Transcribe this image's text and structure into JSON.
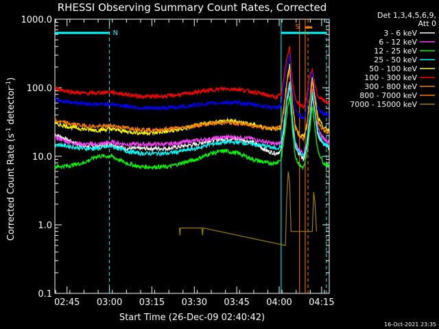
{
  "chart_data": {
    "type": "line",
    "title": "RHESSI Observing Summary Count Rates, Corrected",
    "xlabel": "Start Time (26-Dec-09 02:40:42)",
    "ylabel_main": "Corrected Count Rate (s",
    "ylabel_sup1": "-1",
    "ylabel_mid": " detector",
    "ylabel_sup2": "-1",
    "ylabel_end": ")",
    "y_scale": "log",
    "ylim": [
      0.1,
      1000
    ],
    "xlim_minutes": [
      0,
      97
    ],
    "y_ticks": [
      {
        "value": 1000,
        "label": "1000.0"
      },
      {
        "value": 100,
        "label": "100.0"
      },
      {
        "value": 10,
        "label": "10.0"
      },
      {
        "value": 1,
        "label": "1.0"
      },
      {
        "value": 0.1,
        "label": "0.1"
      }
    ],
    "x_ticks": [
      {
        "value": 4.3,
        "label": "02:45"
      },
      {
        "value": 19.3,
        "label": "03:00"
      },
      {
        "value": 34.3,
        "label": "03:15"
      },
      {
        "value": 49.3,
        "label": "03:30"
      },
      {
        "value": 64.3,
        "label": "03:45"
      },
      {
        "value": 79.3,
        "label": "04:00"
      },
      {
        "value": 94.3,
        "label": "04:15"
      }
    ],
    "legend": {
      "position": "top-right",
      "header1": "Det 1,3,4,5,6,9,",
      "header2": "Att 0"
    },
    "series": [
      {
        "name": "3 - 6 keV",
        "color": "#ffffff",
        "x": [
          0,
          5,
          10,
          15,
          20,
          25,
          30,
          35,
          40,
          45,
          50,
          55,
          60,
          65,
          70,
          75,
          78,
          80,
          81,
          82,
          83,
          84,
          85,
          86,
          87,
          88,
          89,
          90,
          91,
          92,
          93,
          95,
          97
        ],
        "y": [
          21,
          17,
          14,
          14,
          15,
          13,
          13,
          13,
          13,
          14,
          15,
          17,
          18,
          18,
          16,
          12,
          11,
          12,
          25,
          60,
          110,
          30,
          14,
          11,
          10,
          9,
          14,
          30,
          80,
          40,
          20,
          15,
          13
        ]
      },
      {
        "name": "6 - 12 keV",
        "color": "#ff40ff",
        "x": [
          0,
          5,
          10,
          15,
          20,
          25,
          30,
          35,
          40,
          45,
          50,
          55,
          60,
          65,
          70,
          75,
          78,
          80,
          81,
          82,
          83,
          84,
          85,
          86,
          87,
          88,
          89,
          90,
          91,
          92,
          93,
          95,
          97
        ],
        "y": [
          19,
          16,
          15,
          15,
          16,
          15,
          15,
          15,
          15,
          16,
          17,
          18,
          19,
          19,
          18,
          16,
          15,
          16,
          30,
          70,
          120,
          35,
          16,
          13,
          12,
          11,
          16,
          35,
          90,
          45,
          25,
          18,
          16
        ]
      },
      {
        "name": "12 - 25 keV",
        "color": "#00ff00",
        "x": [
          0,
          5,
          10,
          15,
          20,
          25,
          30,
          35,
          40,
          45,
          50,
          55,
          60,
          65,
          70,
          75,
          78,
          80,
          81,
          82,
          83,
          84,
          85,
          86,
          87,
          88,
          89,
          90,
          91,
          92,
          93,
          95,
          97
        ],
        "y": [
          7,
          7.3,
          8,
          10,
          10,
          8,
          7,
          7,
          7,
          8,
          9,
          11,
          12,
          11,
          9,
          8,
          8,
          9,
          18,
          40,
          80,
          25,
          10,
          8,
          7,
          7,
          10,
          22,
          55,
          25,
          12,
          8,
          7
        ]
      },
      {
        "name": "25 - 50 keV",
        "color": "#00ffff",
        "x": [
          0,
          5,
          10,
          15,
          20,
          25,
          30,
          35,
          40,
          45,
          50,
          55,
          60,
          65,
          70,
          75,
          78,
          80,
          81,
          82,
          83,
          84,
          85,
          86,
          87,
          88,
          89,
          90,
          91,
          92,
          93,
          95,
          97
        ],
        "y": [
          15,
          14,
          13,
          13,
          14,
          12,
          11,
          11,
          11,
          12,
          13,
          15,
          16,
          16,
          15,
          14,
          13,
          14,
          28,
          65,
          115,
          32,
          15,
          12,
          11,
          10,
          15,
          32,
          85,
          42,
          22,
          15,
          14
        ]
      },
      {
        "name": "50 - 100 keV",
        "color": "#ffff00",
        "x": [
          0,
          5,
          10,
          15,
          20,
          25,
          30,
          35,
          40,
          45,
          50,
          55,
          60,
          65,
          70,
          75,
          78,
          80,
          81,
          82,
          83,
          84,
          85,
          86,
          87,
          88,
          89,
          90,
          91,
          92,
          93,
          95,
          97
        ],
        "y": [
          30,
          27,
          25,
          24,
          25,
          23,
          22,
          22,
          23,
          25,
          28,
          31,
          33,
          32,
          29,
          26,
          25,
          27,
          55,
          120,
          210,
          60,
          28,
          22,
          20,
          19,
          28,
          60,
          150,
          70,
          36,
          26,
          24
        ]
      },
      {
        "name": "100 - 300 keV",
        "color": "#ff0000",
        "x": [
          0,
          5,
          10,
          15,
          20,
          25,
          30,
          35,
          40,
          45,
          50,
          55,
          60,
          65,
          70,
          75,
          78,
          80,
          81,
          82,
          83,
          84,
          85,
          86,
          87,
          88,
          89,
          90,
          91,
          92,
          93,
          95,
          97
        ],
        "y": [
          98,
          88,
          83,
          84,
          87,
          80,
          75,
          74,
          76,
          80,
          86,
          92,
          97,
          95,
          87,
          78,
          73,
          78,
          140,
          280,
          400,
          120,
          70,
          60,
          55,
          52,
          70,
          150,
          180,
          110,
          75,
          65,
          60
        ]
      },
      {
        "name": "300 - 800 keV",
        "color": "#ff8000",
        "x": [
          0,
          5,
          10,
          15,
          20,
          25,
          30,
          35,
          40,
          45,
          50,
          55,
          60,
          65,
          70,
          75,
          78,
          80,
          81,
          82,
          83,
          84,
          85,
          86,
          87,
          88,
          89,
          90,
          91,
          92,
          93,
          95,
          97
        ],
        "y": [
          33,
          30,
          28,
          27,
          28,
          26,
          25,
          24,
          25,
          26,
          28,
          30,
          31,
          30,
          28,
          26,
          25,
          27,
          50,
          110,
          190,
          55,
          26,
          21,
          19,
          18,
          26,
          55,
          130,
          60,
          32,
          24,
          22
        ]
      },
      {
        "name": "800 - 7000 keV",
        "color": "#ff7f00",
        "x": [],
        "y": []
      },
      {
        "name": "7000 - 15000 keV",
        "color": "#a08000",
        "x": [
          44,
          44.2,
          44.4,
          52,
          52.2,
          52.4,
          81.5,
          82,
          82.5,
          83,
          83.5,
          91,
          91.5,
          92,
          92.5
        ],
        "y": [
          0.9,
          0.7,
          0.9,
          0.9,
          0.7,
          0.9,
          0.5,
          2.5,
          6,
          4,
          0.8,
          0.8,
          3,
          2,
          0.8
        ]
      },
      {
        "name": "_blue",
        "color": "#0000ff",
        "x": [
          0,
          5,
          10,
          15,
          20,
          25,
          30,
          35,
          40,
          45,
          50,
          55,
          60,
          65,
          70,
          75,
          78,
          80,
          81,
          82,
          83,
          84,
          85,
          86,
          87,
          88,
          89,
          90,
          91,
          92,
          93,
          95,
          97
        ],
        "y": [
          67,
          62,
          59,
          57,
          58,
          54,
          51,
          50,
          51,
          53,
          56,
          59,
          61,
          60,
          57,
          53,
          51,
          55,
          100,
          200,
          300,
          90,
          50,
          42,
          38,
          36,
          50,
          110,
          170,
          90,
          50,
          42,
          40
        ]
      }
    ],
    "annotations": {
      "timestamp": "16-Oct-2021 23:35",
      "label_N": "N",
      "label_S": "S",
      "saa_night_bar_minutes": [
        0,
        19.3
      ],
      "night_dashed_minutes": 19.3,
      "night_bar2_minutes": [
        87.5,
        96
      ],
      "night_lines_minutes": [
        80,
        96
      ],
      "saa_lines_minutes": [
        86.5,
        88.5
      ],
      "saa_dashed_minutes": 89.5,
      "saa_bar_minutes": [
        88.5,
        91
      ]
    }
  }
}
